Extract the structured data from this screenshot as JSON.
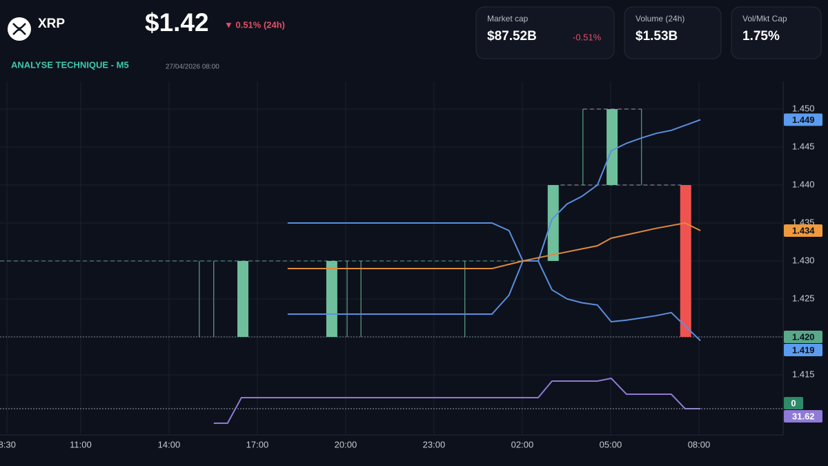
{
  "header": {
    "symbol": "XRP",
    "price": "$1.42",
    "change": "▼ 0.51% (24h)"
  },
  "stats": [
    {
      "label": "Market cap",
      "value": "$87.52B",
      "change": "-0.51%"
    },
    {
      "label": "Volume (24h)",
      "value": "$1.53B"
    },
    {
      "label": "Vol/Mkt Cap",
      "value": "1.75%"
    }
  ],
  "chart_data": {
    "type": "candlestick",
    "title": "ANALYSE TECHNIQUE - M5",
    "subtitle": "27/04/2026 08:00",
    "grid": true,
    "xlim": [
      8.26,
      34.86
    ],
    "xticks": [
      {
        "value": 8.5,
        "label": "8:30"
      },
      {
        "value": 11,
        "label": "11:00"
      },
      {
        "value": 14,
        "label": "14:00"
      },
      {
        "value": 17,
        "label": "17:00"
      },
      {
        "value": 20,
        "label": "20:00"
      },
      {
        "value": 23,
        "label": "23:00"
      },
      {
        "value": 26,
        "label": "02:00"
      },
      {
        "value": 29,
        "label": "05:00"
      },
      {
        "value": 32,
        "label": "08:00"
      }
    ],
    "ylim": [
      1.40709,
      1.45364
    ],
    "yticks": [
      1.415,
      {
        "value": 1.42,
        "label": "1.420"
      },
      1.425,
      {
        "value": 1.43,
        "label": "1.430"
      },
      1.435,
      {
        "value": 1.44,
        "label": "1.440"
      },
      1.445,
      {
        "value": 1.45,
        "label": "1.450"
      }
    ],
    "up_color": "#6fbf9c",
    "down_color": "#ef5350",
    "candles": {
      "x": [
        16.51,
        19.53,
        27.05,
        29.05,
        31.55
      ],
      "open": [
        1.42,
        1.42,
        1.43,
        1.44,
        1.44
      ],
      "close": [
        1.43,
        1.43,
        1.44,
        1.45,
        1.42
      ]
    },
    "wicks": {
      "color": "#6fbf9c",
      "x": [
        15.03,
        15.52,
        20.05,
        20.52,
        24.05,
        28.06,
        30.05
      ],
      "low": [
        1.42,
        1.42,
        1.42,
        1.42,
        1.42,
        1.44,
        1.44
      ],
      "high": [
        1.43,
        1.43,
        1.43,
        1.43,
        1.43,
        1.45,
        1.45
      ]
    },
    "series": [
      {
        "color": "#5b8fe0",
        "x": [
          18.03,
          24.97,
          25.55,
          26.02,
          26.54,
          27.01,
          27.52,
          28.02,
          28.55,
          29.02,
          29.54,
          30.05,
          30.55,
          31.06,
          32.05
        ],
        "values": [
          1.435,
          1.435,
          1.434,
          1.43,
          1.43,
          1.4355,
          1.4375,
          1.4385,
          1.44,
          1.4445,
          1.4455,
          1.4462,
          1.4468,
          1.4472,
          1.4486
        ]
      },
      {
        "color": "#5b8fe0",
        "x": [
          18.03,
          24.97,
          25.55,
          26.02,
          26.54,
          27.01,
          27.52,
          28.02,
          28.55,
          29.02,
          29.54,
          30.05,
          30.55,
          31.06,
          32.05
        ],
        "values": [
          1.423,
          1.423,
          1.4255,
          1.43,
          1.43,
          1.4262,
          1.425,
          1.4245,
          1.4242,
          1.422,
          1.4222,
          1.4225,
          1.4228,
          1.4232,
          1.4195
        ]
      },
      {
        "color": "#e08a3c",
        "x": [
          18.03,
          24.97,
          26.02,
          27.01,
          28.55,
          29.02,
          30.55,
          31.53,
          32.05
        ],
        "values": [
          1.429,
          1.429,
          1.43,
          1.4308,
          1.432,
          1.433,
          1.4343,
          1.435,
          1.434
        ]
      }
    ],
    "levels": [
      {
        "value": 1.43,
        "from": 8.26,
        "to": 26.02,
        "color": "#5aa88a",
        "style": "dashed"
      },
      {
        "value": 1.44,
        "from": 27.3,
        "to": 31.4,
        "color": "#9aa3b2",
        "style": "dashed"
      },
      {
        "value": 1.45,
        "from": 28.06,
        "to": 30.05,
        "color": "#9aa3b2",
        "style": "dashed"
      },
      {
        "value": 1.42,
        "from": 8.26,
        "to": 34.86,
        "color": "#7d8594",
        "style": "dotted"
      }
    ],
    "price_tags": [
      {
        "value": 1.4486,
        "label": "1.449",
        "color": "#5b9cf0"
      },
      {
        "value": 1.434,
        "label": "1.434",
        "color": "#ef9a3c"
      },
      {
        "value": 1.42,
        "label": "1.420",
        "color": "#5aa88a"
      },
      {
        "value": 1.4195,
        "label": "1.419",
        "color": "#5b9cf0"
      }
    ],
    "indicator": {
      "color": "#8f7ad6",
      "y2lim": [
        -6.38,
        505.62
      ],
      "x": [
        15.52,
        15.99,
        16.46,
        26.54,
        27.01,
        28.55,
        29.02,
        29.54,
        31.06,
        31.53,
        32.05
      ],
      "values": [
        10.62,
        10.62,
        47.62,
        47.62,
        71.62,
        71.62,
        75.62,
        52.62,
        52.62,
        31.62,
        31.62
      ]
    },
    "volume_tag": {
      "value": 0,
      "color": "#2e8a68"
    }
  }
}
